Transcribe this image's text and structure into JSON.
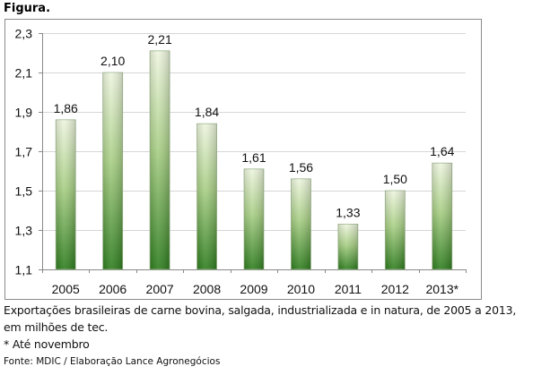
{
  "figure_label": "Figura.",
  "chart_data": {
    "type": "bar",
    "title": "",
    "xlabel": "",
    "ylabel": "",
    "categories": [
      "2005",
      "2006",
      "2007",
      "2008",
      "2009",
      "2010",
      "2011",
      "2012",
      "2013*"
    ],
    "values": [
      1.86,
      2.1,
      2.21,
      1.84,
      1.61,
      1.56,
      1.33,
      1.5,
      1.64
    ],
    "value_labels": [
      "1,86",
      "2,10",
      "2,21",
      "1,84",
      "1,61",
      "1,56",
      "1,33",
      "1,50",
      "1,64"
    ],
    "ylim": [
      1.1,
      2.3
    ],
    "yticks": [
      1.1,
      1.3,
      1.5,
      1.7,
      1.9,
      2.1,
      2.3
    ],
    "ytick_labels": [
      "1,1",
      "1,3",
      "1,5",
      "1,7",
      "1,9",
      "2,1",
      "2,3"
    ],
    "grid": true,
    "bar_color_top": "#eef5df",
    "bar_color_bottom": "#2e7d1e"
  },
  "caption": {
    "line1": "Exportações brasileiras de carne bovina, salgada, industrializada e in natura, de 2005 a 2013,",
    "line2": "em milhões de tec.",
    "note": "* Até novembro",
    "source": "Fonte: MDIC / Elaboração Lance Agronegócios"
  }
}
